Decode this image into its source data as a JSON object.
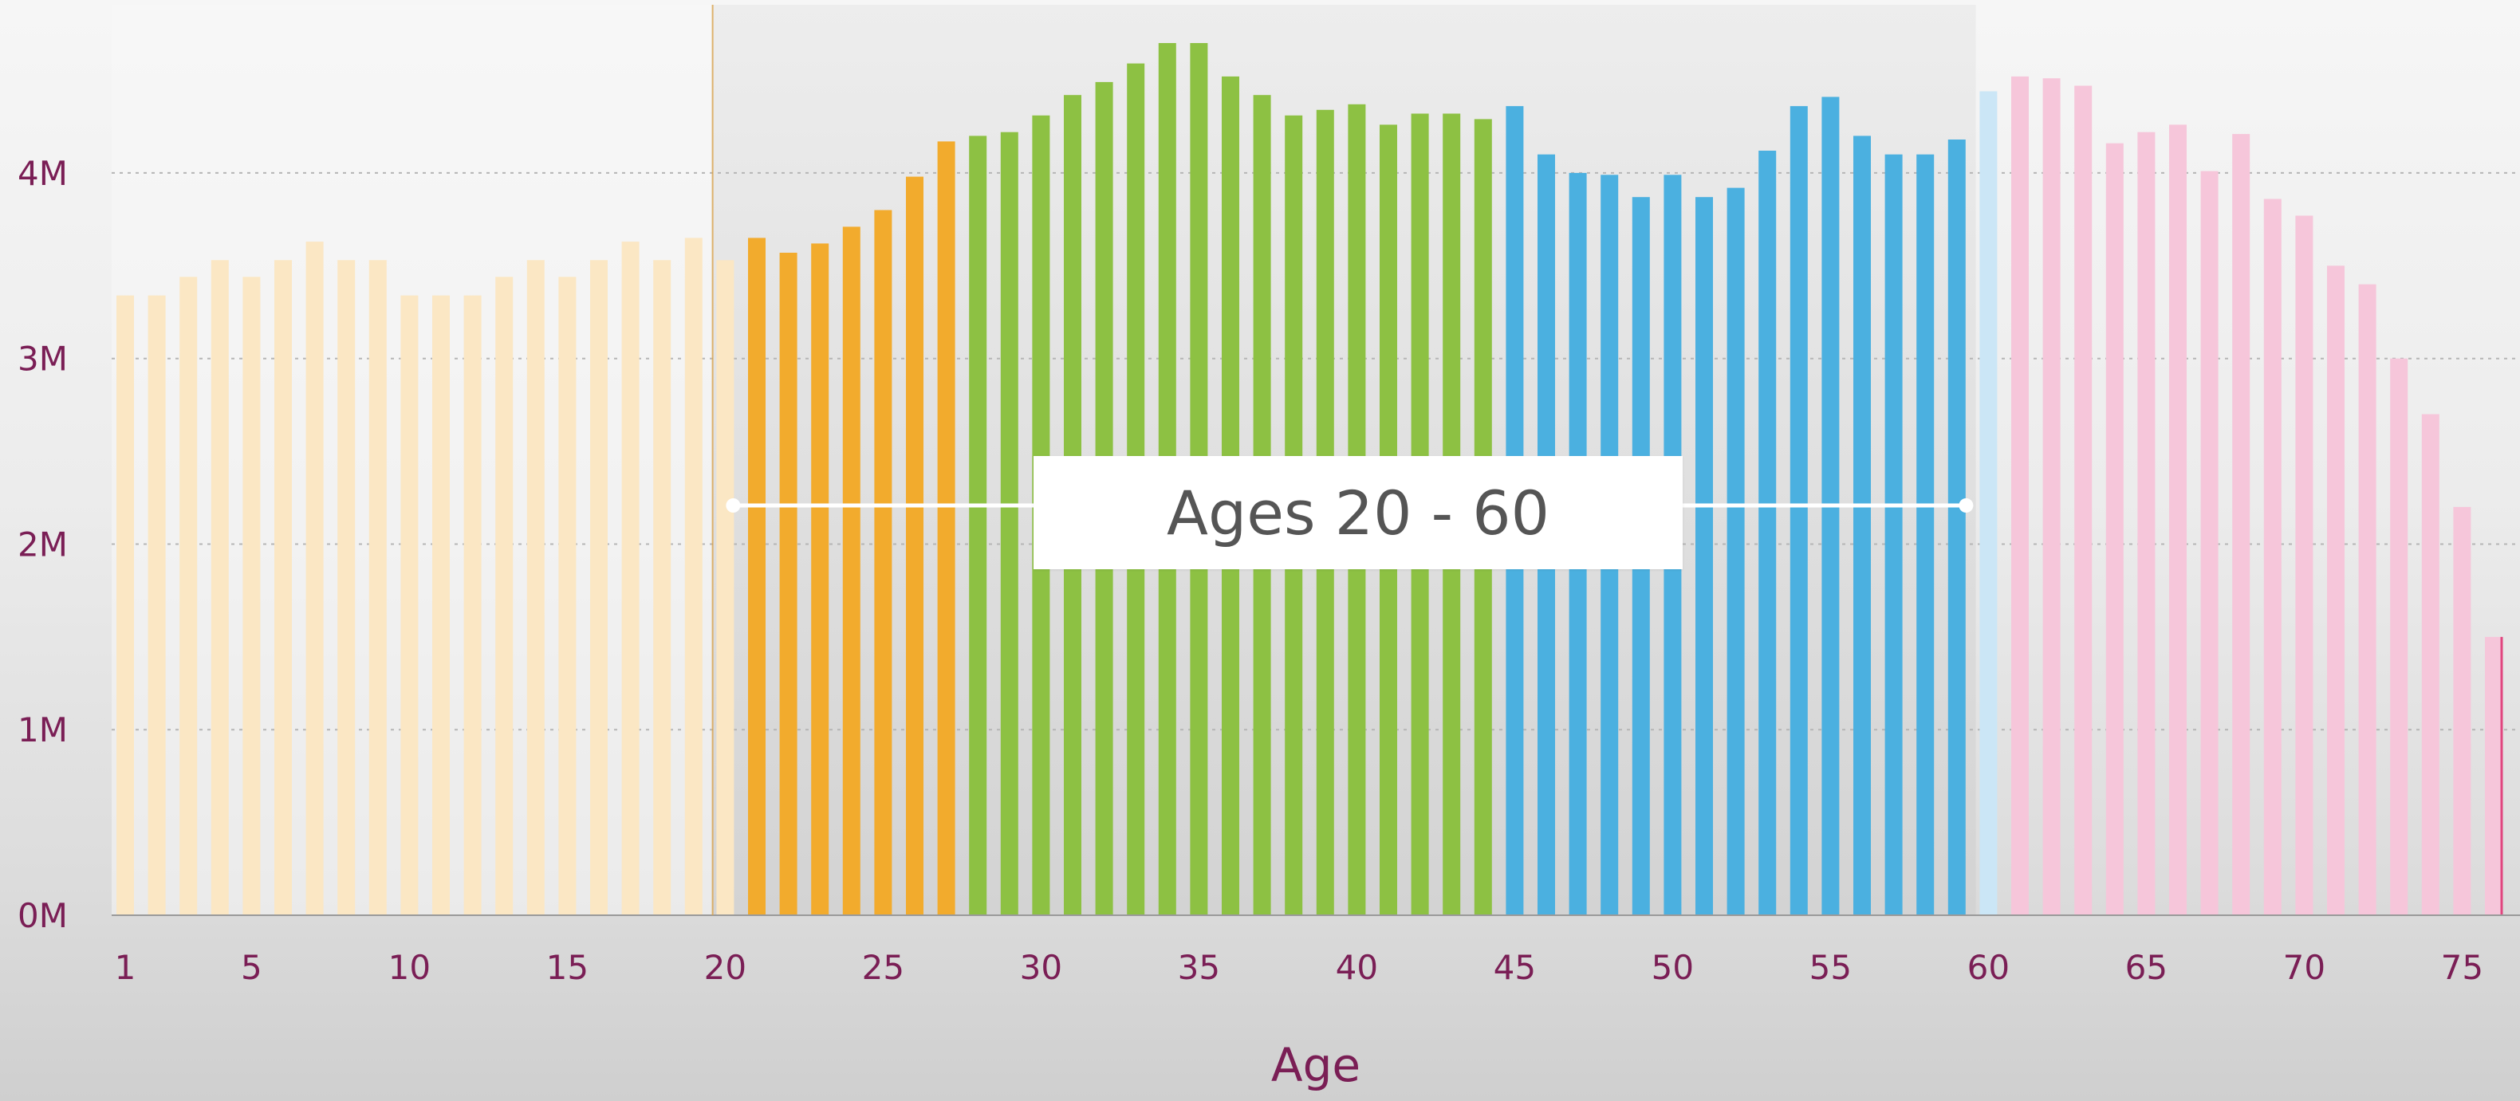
{
  "chart_data": {
    "type": "bar",
    "xlabel": "Age",
    "ylabel": "",
    "title": "",
    "ylim": [
      0,
      4700000
    ],
    "y_ticks": [
      {
        "value": 0,
        "label": "0M"
      },
      {
        "value": 1000000,
        "label": "1M"
      },
      {
        "value": 2000000,
        "label": "2M"
      },
      {
        "value": 3000000,
        "label": "3M"
      },
      {
        "value": 4000000,
        "label": "4M"
      }
    ],
    "x_ticks": [
      {
        "value": 1,
        "label": "1"
      },
      {
        "value": 5,
        "label": "5"
      },
      {
        "value": 10,
        "label": "10"
      },
      {
        "value": 15,
        "label": "15"
      },
      {
        "value": 20,
        "label": "20"
      },
      {
        "value": 25,
        "label": "25"
      },
      {
        "value": 30,
        "label": "30"
      },
      {
        "value": 35,
        "label": "35"
      },
      {
        "value": 40,
        "label": "40"
      },
      {
        "value": 45,
        "label": "45"
      },
      {
        "value": 50,
        "label": "50"
      },
      {
        "value": 55,
        "label": "55"
      },
      {
        "value": 60,
        "label": "60"
      },
      {
        "value": 65,
        "label": "65"
      },
      {
        "value": 70,
        "label": "70"
      },
      {
        "value": 75,
        "label": "75"
      }
    ],
    "grid": true,
    "categories": [
      1,
      2,
      3,
      4,
      5,
      6,
      7,
      8,
      9,
      10,
      11,
      12,
      13,
      14,
      15,
      16,
      17,
      18,
      19,
      20,
      21,
      22,
      23,
      24,
      25,
      26,
      27,
      28,
      29,
      30,
      31,
      32,
      33,
      34,
      35,
      36,
      37,
      38,
      39,
      40,
      41,
      42,
      43,
      44,
      45,
      46,
      47,
      48,
      49,
      50,
      51,
      52,
      53,
      54,
      55,
      56,
      57,
      58,
      59,
      60,
      61,
      62,
      63,
      64,
      65,
      66,
      67,
      68,
      69,
      70,
      71,
      72,
      73,
      74,
      75,
      76
    ],
    "values": [
      3340000,
      3340000,
      3440000,
      3530000,
      3440000,
      3530000,
      3630000,
      3530000,
      3530000,
      3340000,
      3340000,
      3340000,
      3440000,
      3530000,
      3440000,
      3530000,
      3630000,
      3530000,
      3650000,
      3530000,
      3650000,
      3570000,
      3620000,
      3710000,
      3800000,
      3980000,
      4170000,
      4200000,
      4220000,
      4310000,
      4420000,
      4490000,
      4590000,
      4700000,
      4700000,
      4520000,
      4420000,
      4310000,
      4340000,
      4370000,
      4260000,
      4320000,
      4320000,
      4290000,
      4360000,
      4100000,
      4000000,
      3990000,
      3870000,
      3990000,
      3870000,
      3920000,
      4120000,
      4360000,
      4410000,
      4200000,
      4100000,
      4100000,
      4180000,
      4440000,
      4520000,
      4510000,
      4470000,
      4160000,
      4220000,
      4260000,
      4010000,
      4210000,
      3860000,
      3770000,
      3500000,
      3400000,
      3000000,
      2700000,
      2200000,
      1500000
    ],
    "color_groups": [
      {
        "from": 1,
        "to": 20,
        "color": "#fbe7c4",
        "faded": true
      },
      {
        "from": 21,
        "to": 27,
        "color": "#f2ab2d",
        "faded": false
      },
      {
        "from": 28,
        "to": 44,
        "color": "#8dc143",
        "faded": false
      },
      {
        "from": 45,
        "to": 59,
        "color": "#4bb0e0",
        "faded": false
      },
      {
        "from": 60,
        "to": 60,
        "color": "#cbe6f6",
        "faded": true
      },
      {
        "from": 61,
        "to": 76,
        "color": "#f6c6da",
        "faded": true
      }
    ],
    "selected_range": {
      "from": 20,
      "to": 60
    },
    "range_label": "Ages 20 - 60"
  }
}
